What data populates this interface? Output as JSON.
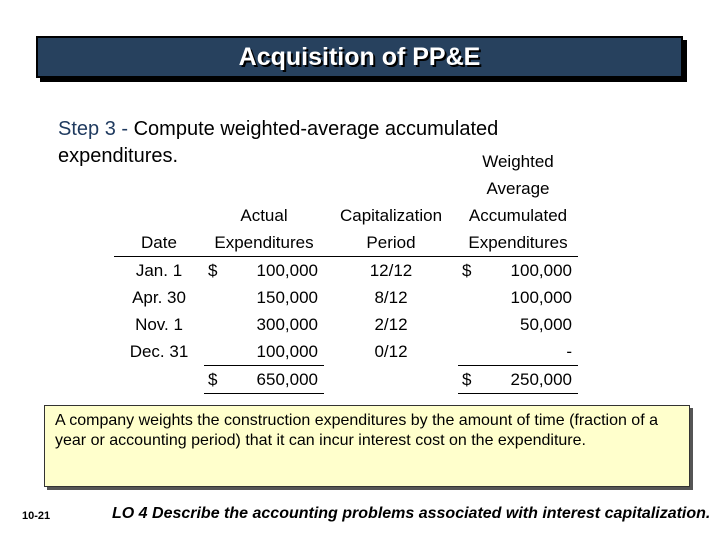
{
  "title": "Acquisition of PP&E",
  "step": {
    "label": "Step 3 -",
    "text": "Compute weighted-average accumulated expenditures."
  },
  "table": {
    "headers": {
      "date": [
        "",
        "",
        "",
        "Date"
      ],
      "actual": [
        "",
        "",
        "Actual",
        "Expenditures"
      ],
      "capitalization": [
        "",
        "",
        "Capitalization",
        "Period"
      ],
      "weighted": [
        "Weighted",
        "Average",
        "Accumulated",
        "Expenditures"
      ]
    },
    "rows": [
      {
        "date": "Jan. 1",
        "actual_sym": "$",
        "actual": "100,000",
        "period": "12/12",
        "wa_sym": "$",
        "wa": "100,000"
      },
      {
        "date": "Apr. 30",
        "actual_sym": "",
        "actual": "150,000",
        "period": "8/12",
        "wa_sym": "",
        "wa": "100,000"
      },
      {
        "date": "Nov. 1",
        "actual_sym": "",
        "actual": "300,000",
        "period": "2/12",
        "wa_sym": "",
        "wa": "50,000"
      },
      {
        "date": "Dec. 31",
        "actual_sym": "",
        "actual": "100,000",
        "period": "0/12",
        "wa_sym": "",
        "wa": "-"
      }
    ],
    "total": {
      "actual_sym": "$",
      "actual": "650,000",
      "wa_sym": "$",
      "wa": "250,000"
    }
  },
  "note": "A company weights the construction expenditures by the amount of time (fraction of a year or accounting period) that it can incur interest cost on the expenditure.",
  "slide_number": "10-21",
  "learning_objective": "LO 4  Describe the accounting problems associated with interest capitalization.",
  "colors": {
    "title_bg": "#27415e",
    "note_bg": "#ffffcc",
    "step_label": "#1f3a5f"
  }
}
